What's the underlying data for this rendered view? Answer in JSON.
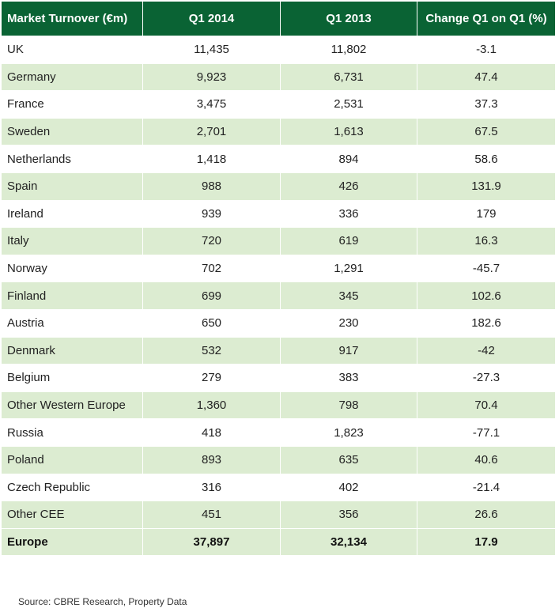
{
  "colors": {
    "header_bg": "#0a6334",
    "header_text": "#ffffff",
    "band": "#dcecd1",
    "row": "#ffffff"
  },
  "chart_data": {
    "type": "table",
    "columns": [
      "Market Turnover (€m)",
      "Q1 2014",
      "Q1 2013",
      "Change Q1 on Q1 (%)"
    ],
    "rows": [
      [
        "UK",
        "11,435",
        "11,802",
        "-3.1"
      ],
      [
        "Germany",
        "9,923",
        "6,731",
        "47.4"
      ],
      [
        "France",
        "3,475",
        "2,531",
        "37.3"
      ],
      [
        "Sweden",
        "2,701",
        "1,613",
        "67.5"
      ],
      [
        "Netherlands",
        "1,418",
        "894",
        "58.6"
      ],
      [
        "Spain",
        "988",
        "426",
        "131.9"
      ],
      [
        "Ireland",
        "939",
        "336",
        "179"
      ],
      [
        "Italy",
        "720",
        "619",
        "16.3"
      ],
      [
        "Norway",
        "702",
        "1,291",
        "-45.7"
      ],
      [
        "Finland",
        "699",
        "345",
        "102.6"
      ],
      [
        "Austria",
        "650",
        "230",
        "182.6"
      ],
      [
        "Denmark",
        "532",
        "917",
        "-42"
      ],
      [
        "Belgium",
        "279",
        "383",
        "-27.3"
      ],
      [
        "Other Western Europe",
        "1,360",
        "798",
        "70.4"
      ],
      [
        "Russia",
        "418",
        "1,823",
        "-77.1"
      ],
      [
        "Poland",
        "893",
        "635",
        "40.6"
      ],
      [
        "Czech Republic",
        "316",
        "402",
        "-21.4"
      ],
      [
        "Other CEE",
        "451",
        "356",
        "26.6"
      ]
    ],
    "total": [
      "Europe",
      "37,897",
      "32,134",
      "17.9"
    ],
    "source": "Source: CBRE Research, Property Data"
  }
}
